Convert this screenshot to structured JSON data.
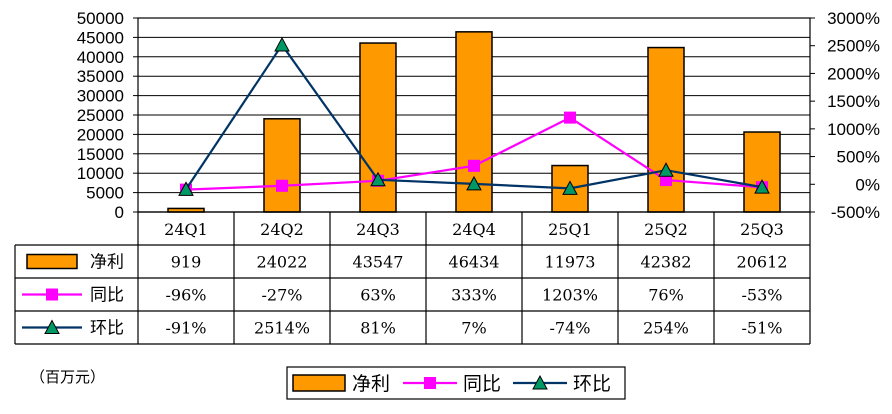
{
  "chart_data": {
    "type": "bar",
    "categories": [
      "24Q1",
      "24Q2",
      "24Q3",
      "24Q4",
      "25Q1",
      "25Q2",
      "25Q3"
    ],
    "series": [
      {
        "name": "净利",
        "kind": "bar",
        "axis": "left",
        "color": "#FF9900",
        "values": [
          919,
          24022,
          43547,
          46434,
          11973,
          42382,
          20612
        ],
        "labels": [
          "919",
          "24022",
          "43547",
          "46434",
          "11973",
          "42382",
          "20612"
        ]
      },
      {
        "name": "同比",
        "kind": "line",
        "axis": "right",
        "color": "#FF00FF",
        "marker": "square",
        "values": [
          -96,
          -27,
          63,
          333,
          1203,
          76,
          -53
        ],
        "labels": [
          "-96%",
          "-27%",
          "63%",
          "333%",
          "1203%",
          "76%",
          "-53%"
        ]
      },
      {
        "name": "环比",
        "kind": "line",
        "axis": "right",
        "color": "#003366",
        "marker": "triangle",
        "values": [
          -91,
          2514,
          81,
          7,
          -74,
          254,
          -51
        ],
        "labels": [
          "-91%",
          "2514%",
          "81%",
          "7%",
          "-74%",
          "254%",
          "-51%"
        ]
      }
    ],
    "y_left": {
      "min": 0,
      "max": 50000,
      "ticks": [
        "0",
        "5000",
        "10000",
        "15000",
        "20000",
        "25000",
        "30000",
        "35000",
        "40000",
        "45000",
        "50000"
      ]
    },
    "y_right": {
      "min": -500,
      "max": 3000,
      "ticks": [
        "-500%",
        "0%",
        "500%",
        "1000%",
        "1500%",
        "2000%",
        "2500%",
        "3000%"
      ]
    },
    "grid": true,
    "unit_note": "（百万元）",
    "legend": {
      "placement": "bottom-center",
      "labels": [
        "净利",
        "同比",
        "环比"
      ]
    }
  }
}
